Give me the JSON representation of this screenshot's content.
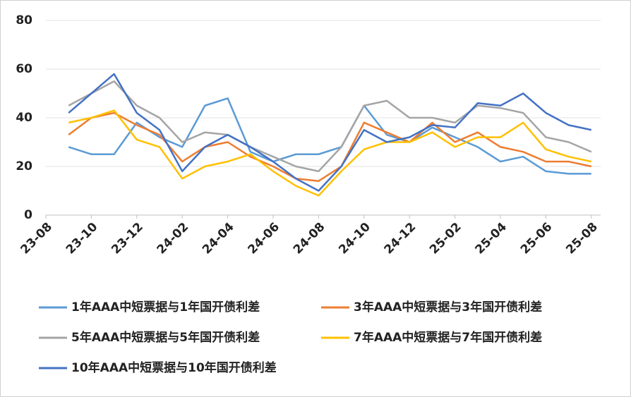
{
  "chart_data": {
    "type": "line",
    "x": [
      "23-09",
      "23-10",
      "23-11",
      "23-12",
      "24-01",
      "24-02",
      "24-03",
      "24-04",
      "24-05",
      "24-06",
      "24-07",
      "24-08",
      "24-09",
      "24-10",
      "24-11",
      "24-12",
      "25-01",
      "25-02",
      "25-03",
      "25-04",
      "25-05",
      "25-06",
      "25-07",
      "25-08"
    ],
    "xticks": [
      "23-08",
      "23-10",
      "23-12",
      "24-02",
      "24-04",
      "24-06",
      "24-08",
      "24-10",
      "24-12",
      "25-02",
      "25-04",
      "25-06",
      "25-08"
    ],
    "ylim": [
      0,
      80
    ],
    "yticks": [
      0,
      20,
      40,
      60,
      80
    ],
    "grid": true,
    "series": [
      {
        "name": "1年AAA中短票据与1年国开债利差",
        "color": "#5b9bd5",
        "values": [
          28,
          25,
          25,
          38,
          32,
          28,
          45,
          48,
          26,
          22,
          25,
          25,
          28,
          45,
          33,
          30,
          36,
          32,
          28,
          22,
          24,
          18,
          17,
          17
        ]
      },
      {
        "name": "3年AAA中短票据与3年国开债利差",
        "color": "#ed7d31",
        "values": [
          33,
          40,
          42,
          37,
          33,
          22,
          28,
          30,
          24,
          20,
          15,
          14,
          20,
          38,
          34,
          30,
          38,
          30,
          34,
          28,
          26,
          22,
          22,
          20
        ]
      },
      {
        "name": "5年AAA中短票据与5年国开债利差",
        "color": "#a5a5a5",
        "values": [
          45,
          50,
          55,
          45,
          40,
          30,
          34,
          33,
          28,
          24,
          20,
          18,
          28,
          45,
          47,
          40,
          40,
          38,
          45,
          44,
          42,
          32,
          30,
          26
        ]
      },
      {
        "name": "7年AAA中短票据与7年国开债利差",
        "color": "#ffc000",
        "values": [
          38,
          40,
          43,
          31,
          28,
          15,
          20,
          22,
          25,
          18,
          12,
          8,
          18,
          27,
          30,
          30,
          34,
          28,
          32,
          32,
          38,
          27,
          24,
          22
        ]
      },
      {
        "name": "10年AAA中短票据与10年国开债利差",
        "color": "#4472c4",
        "values": [
          42,
          50,
          58,
          42,
          35,
          18,
          28,
          33,
          28,
          22,
          15,
          10,
          20,
          35,
          30,
          32,
          37,
          36,
          46,
          45,
          50,
          42,
          37,
          35
        ]
      }
    ]
  }
}
